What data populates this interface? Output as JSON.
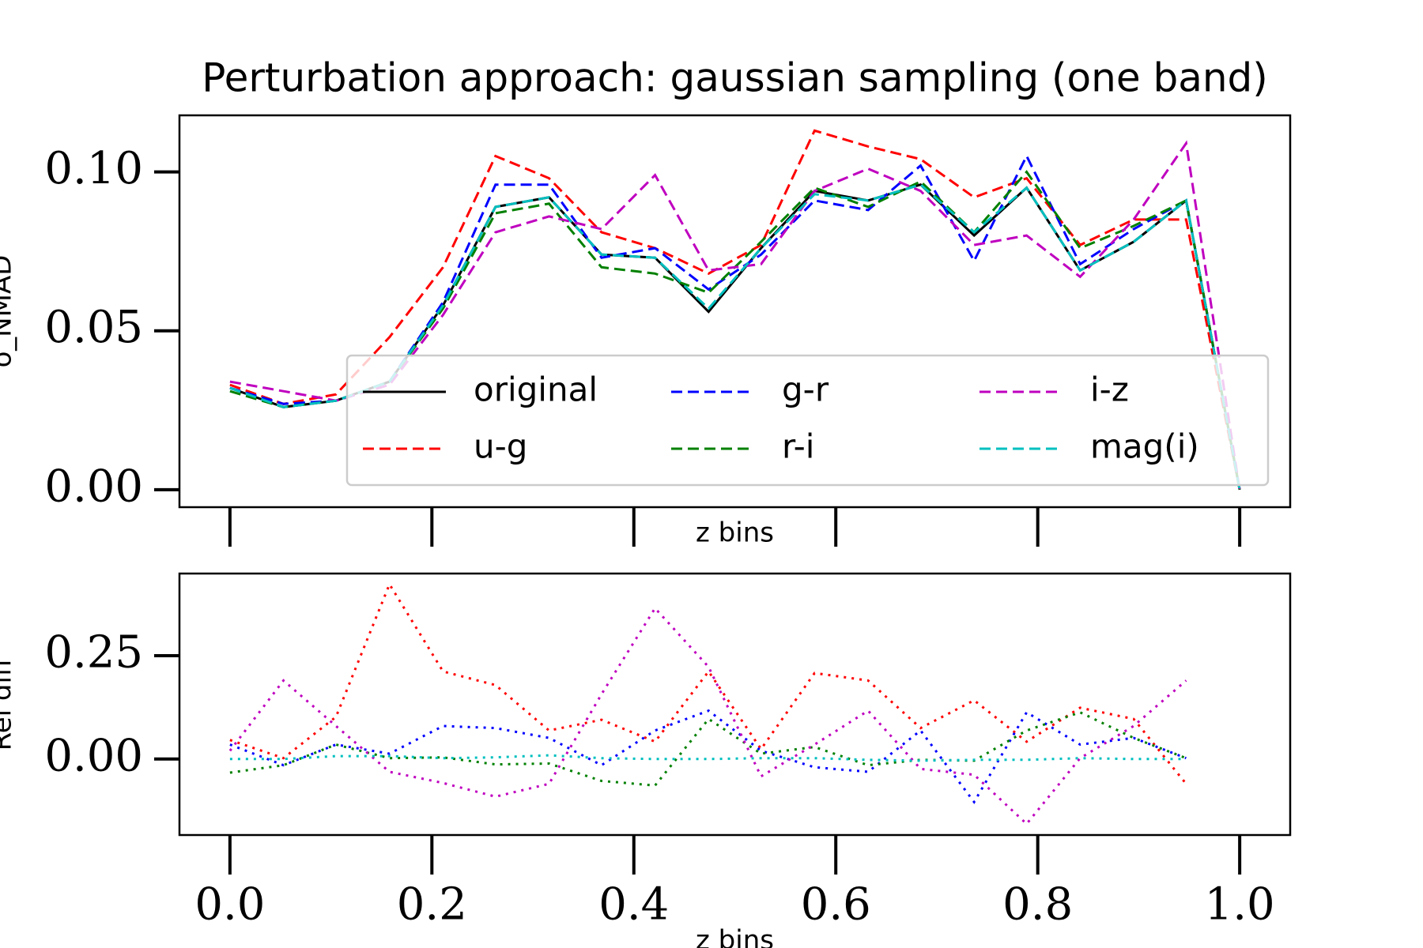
{
  "chart_data": [
    {
      "type": "line",
      "title": "Perturbation approach: gaussian sampling (one band)",
      "xlabel": "z bins",
      "ylabel": "σ_NMAD",
      "x": [
        0,
        0.053,
        0.105,
        0.158,
        0.211,
        0.263,
        0.316,
        0.368,
        0.421,
        0.474,
        0.526,
        0.579,
        0.632,
        0.684,
        0.737,
        0.789,
        0.842,
        0.895,
        0.947,
        1.0
      ],
      "xlim": [
        -0.05,
        1.05
      ],
      "xticks": [
        0,
        0.2,
        0.4,
        0.6,
        0.8,
        1.0
      ],
      "ylim": [
        -0.0055,
        0.1178
      ],
      "yticks": [
        {
          "value": 0,
          "label": "0.00"
        },
        {
          "value": 0.05,
          "label": "0.05"
        },
        {
          "value": 0.1,
          "label": "0.10"
        }
      ],
      "legend": "lower right",
      "legend_columns": 3,
      "series": [
        {
          "name": "original",
          "color": "#000000",
          "linestyle": "solid",
          "values": [
            0.032,
            0.026,
            0.028,
            0.034,
            0.058,
            0.089,
            0.092,
            0.074,
            0.073,
            0.056,
            0.076,
            0.094,
            0.091,
            0.096,
            0.08,
            0.095,
            0.069,
            0.078,
            0.091,
            0.0
          ]
        },
        {
          "name": "u-g",
          "color": "#ff0000",
          "linestyle": "dashed",
          "values": [
            0.033,
            0.027,
            0.03,
            0.048,
            0.07,
            0.105,
            0.098,
            0.081,
            0.076,
            0.068,
            0.077,
            0.113,
            0.108,
            0.104,
            0.092,
            0.098,
            0.077,
            0.085,
            0.085,
            0.0
          ]
        },
        {
          "name": "g-r",
          "color": "#0000ff",
          "linestyle": "dashed",
          "values": [
            0.032,
            0.027,
            0.028,
            0.034,
            0.059,
            0.096,
            0.096,
            0.073,
            0.076,
            0.063,
            0.074,
            0.091,
            0.088,
            0.102,
            0.072,
            0.105,
            0.071,
            0.082,
            0.091,
            0.0
          ]
        },
        {
          "name": "r-i",
          "color": "#008000",
          "linestyle": "dashed",
          "values": [
            0.031,
            0.026,
            0.028,
            0.034,
            0.057,
            0.087,
            0.09,
            0.07,
            0.068,
            0.062,
            0.078,
            0.095,
            0.089,
            0.097,
            0.081,
            0.1,
            0.076,
            0.083,
            0.091,
            0.0
          ]
        },
        {
          "name": "i-z",
          "color": "#bf00bf",
          "linestyle": "dashed",
          "values": [
            0.034,
            0.031,
            0.028,
            0.033,
            0.055,
            0.081,
            0.086,
            0.082,
            0.099,
            0.069,
            0.071,
            0.094,
            0.101,
            0.094,
            0.077,
            0.08,
            0.067,
            0.085,
            0.109,
            0.0
          ]
        },
        {
          "name": "mag(i)",
          "color": "#00bfbf",
          "linestyle": "dashed",
          "values": [
            0.032,
            0.026,
            0.028,
            0.034,
            0.058,
            0.089,
            0.092,
            0.074,
            0.073,
            0.057,
            0.076,
            0.093,
            0.091,
            0.096,
            0.081,
            0.095,
            0.069,
            0.078,
            0.091,
            0.0
          ]
        }
      ]
    },
    {
      "type": "line",
      "xlabel": "z bins",
      "ylabel": "Rel diff",
      "x": [
        0,
        0.053,
        0.105,
        0.158,
        0.211,
        0.263,
        0.316,
        0.368,
        0.421,
        0.474,
        0.526,
        0.579,
        0.632,
        0.684,
        0.737,
        0.789,
        0.842,
        0.895,
        0.947
      ],
      "xlim": [
        -0.05,
        1.05
      ],
      "xticks": [
        {
          "value": 0,
          "label": "0.0"
        },
        0.2,
        0.4,
        0.6,
        0.8,
        {
          "value": 1.0,
          "label": "1.0"
        }
      ],
      "ylim": [
        -0.184,
        0.449
      ],
      "yticks": [
        {
          "value": 0,
          "label": "0.00"
        },
        0.25
      ],
      "series": [
        {
          "color": "#ff0000",
          "linestyle": "dotted",
          "values": [
            0.046,
            0.002,
            0.102,
            0.423,
            0.212,
            0.179,
            0.069,
            0.095,
            0.042,
            0.212,
            0.024,
            0.208,
            0.19,
            0.075,
            0.142,
            0.042,
            0.124,
            0.097,
            -0.06
          ]
        },
        {
          "color": "#0000ff",
          "linestyle": "dotted",
          "values": [
            0.035,
            -0.015,
            0.035,
            0.013,
            0.08,
            0.075,
            0.051,
            -0.015,
            0.069,
            0.117,
            0.02,
            -0.02,
            -0.031,
            0.069,
            -0.104,
            0.113,
            0.035,
            0.051,
            0.002
          ]
        },
        {
          "color": "#008000",
          "linestyle": "dotted",
          "values": [
            -0.033,
            -0.015,
            0.035,
            0.002,
            0.004,
            -0.013,
            -0.011,
            -0.053,
            -0.064,
            0.097,
            0.013,
            0.029,
            -0.015,
            -0.002,
            -0.004,
            0.069,
            0.113,
            0.051,
            0.002
          ]
        },
        {
          "color": "#bf00bf",
          "linestyle": "dotted",
          "values": [
            0.02,
            0.19,
            0.08,
            -0.031,
            -0.058,
            -0.091,
            -0.06,
            0.157,
            0.365,
            0.223,
            -0.042,
            0.035,
            0.117,
            -0.024,
            -0.038,
            -0.157,
            0.002,
            0.08,
            0.19
          ]
        },
        {
          "color": "#00bfbf",
          "linestyle": "dotted",
          "values": [
            0,
            0,
            0.007,
            0.007,
            0.002,
            0.004,
            0.009,
            0.002,
            0,
            0,
            0.002,
            0.002,
            -0.002,
            -0.004,
            -0.002,
            -0.002,
            0.002,
            0,
            0
          ]
        }
      ]
    }
  ]
}
